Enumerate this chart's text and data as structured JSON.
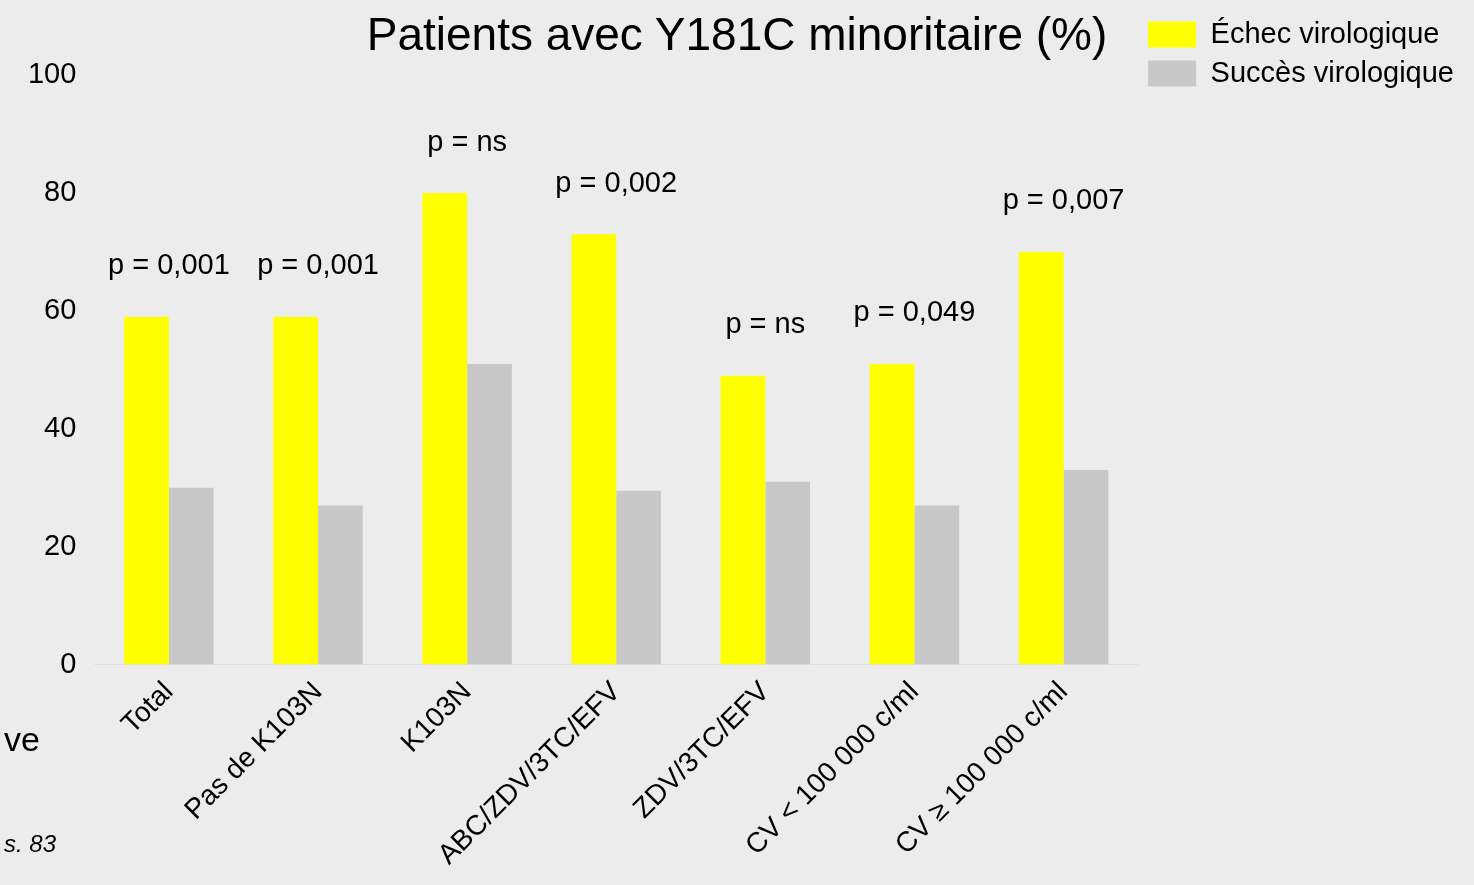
{
  "chart_data": {
    "type": "bar",
    "title": "Patients avec Y181C minoritaire (%)",
    "categories": [
      "Total",
      "Pas de K103N",
      "K103N",
      "ABC/ZDV/3TC/EFV",
      "ZDV/3TC/EFV",
      "CV < 100 000 c/ml",
      "CV ≥ 100 000 c/ml"
    ],
    "series": [
      {
        "name": "Échec virologique",
        "color": "#ffff00",
        "values": [
          59,
          59,
          80,
          73,
          49,
          51,
          70
        ]
      },
      {
        "name": "Succès virologique",
        "color": "#c8c8c8",
        "values": [
          30,
          27,
          51,
          29.5,
          31,
          27,
          33
        ]
      }
    ],
    "ylim": [
      0,
      100
    ],
    "yticks": [
      0,
      20,
      40,
      60,
      80,
      100
    ],
    "grid": false,
    "legend": "top right",
    "annotations": [
      {
        "text": "p = 0,001",
        "x": "Total",
        "y": 59
      },
      {
        "text": "p = 0,001",
        "x": "Pas de K103N",
        "y": 59
      },
      {
        "text": "p = ns",
        "x": "K103N",
        "y": 80
      },
      {
        "text": "p = 0,002",
        "x": "ABC/ZDV/3TC/EFV",
        "y": 73
      },
      {
        "text": "p = ns",
        "x": "ZDV/3TC/EFV",
        "y": 49
      },
      {
        "text": "p = 0,049",
        "x": "CV < 100 000 c/ml",
        "y": 51
      },
      {
        "text": "p = 0,007",
        "x": "CV ≥ 100 000 c/ml",
        "y": 70
      },
      "ve",
      "s. 83"
    ]
  }
}
